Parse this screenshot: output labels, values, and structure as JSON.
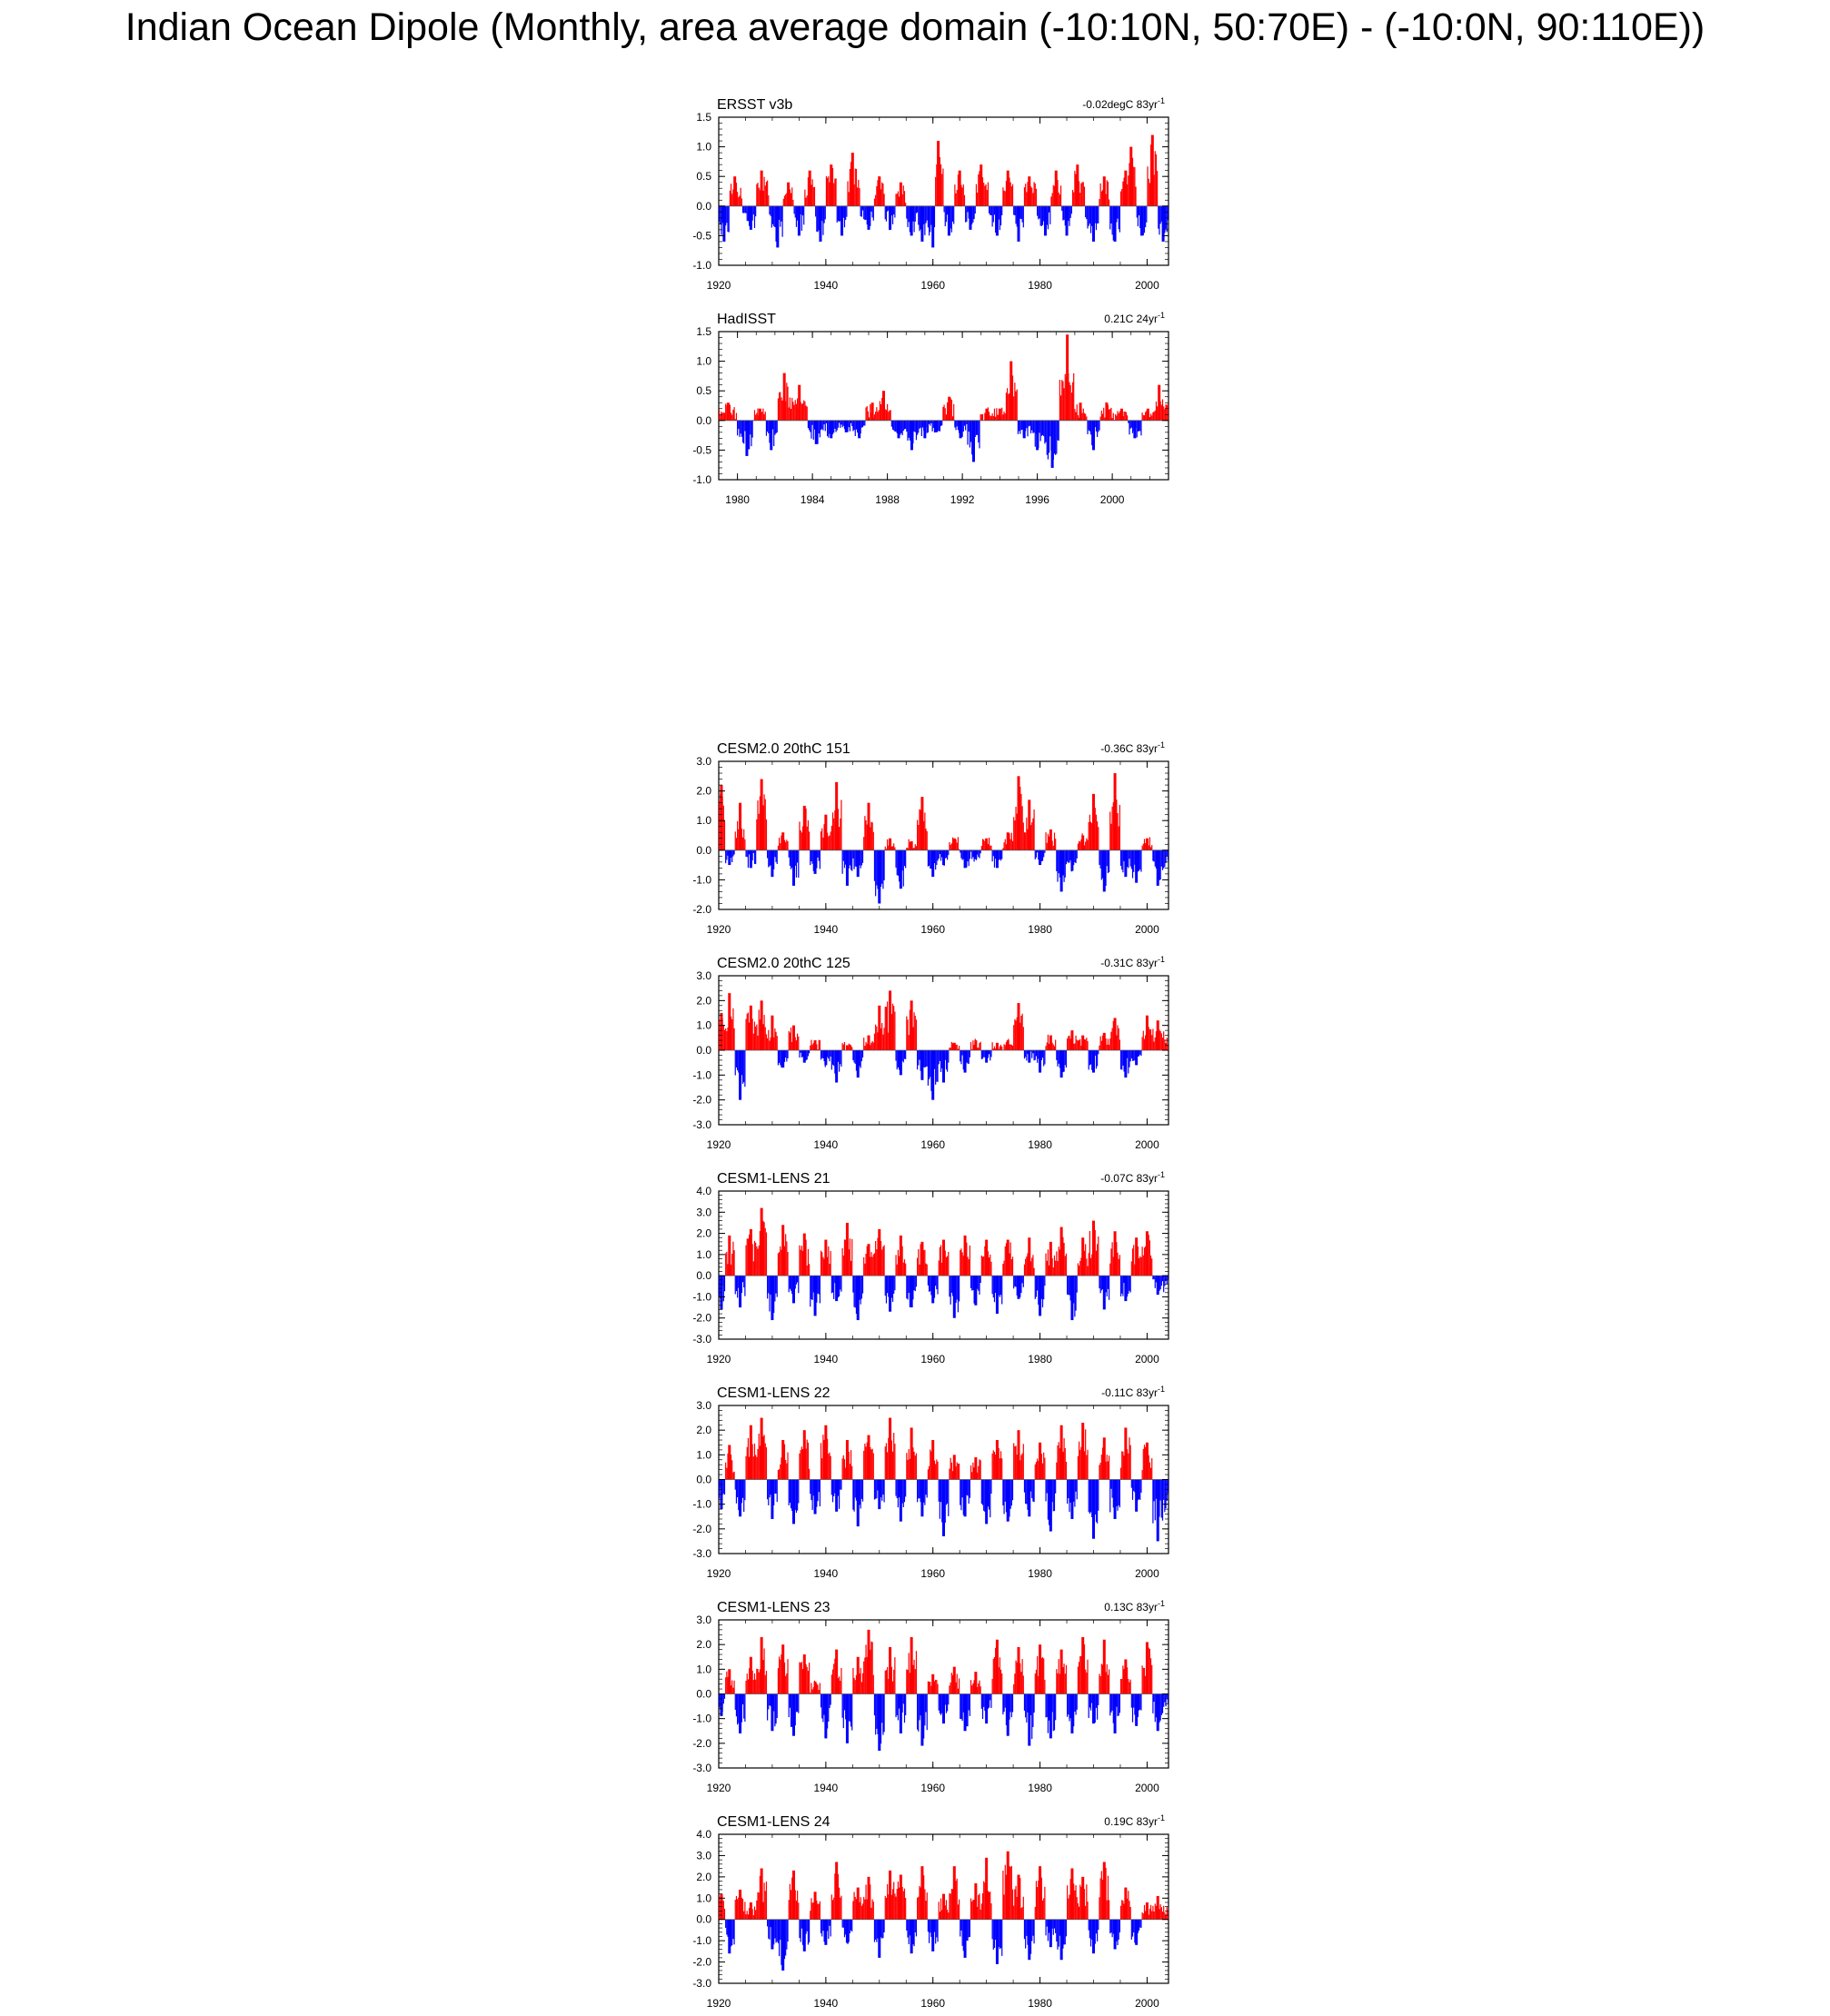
{
  "title": "Indian Ocean Dipole (Monthly, area average domain (-10:10N, 50:70E) - (-10:0N, 90:110E))",
  "colors": {
    "positive": "#ff0000",
    "negative": "#0000ff",
    "axis": "#000000"
  },
  "chart_data": [
    {
      "type": "bar",
      "name": "ERSST v3b",
      "title": "ERSST v3b",
      "trend": {
        "value": "-0.02degC",
        "per": "83yr",
        "exp": "-1"
      },
      "xlim": [
        1920,
        2004
      ],
      "ylim": [
        -1.0,
        1.5
      ],
      "xticks": [
        1920,
        1940,
        1960,
        1980,
        2000
      ],
      "yticks": [
        -1.0,
        -0.5,
        0.0,
        0.5,
        1.0,
        1.5
      ],
      "x": [
        1921,
        1923,
        1926,
        1928,
        1931,
        1933,
        1935,
        1937,
        1939,
        1941,
        1943,
        1945,
        1948,
        1950,
        1952,
        1954,
        1956,
        1958,
        1960,
        1961,
        1963,
        1965,
        1967,
        1969,
        1972,
        1974,
        1976,
        1978,
        1981,
        1983,
        1985,
        1987,
        1990,
        1992,
        1994,
        1996,
        1997,
        1999,
        2001,
        2003
      ],
      "values": [
        -0.6,
        0.5,
        -0.4,
        0.6,
        -0.7,
        0.4,
        -0.5,
        0.6,
        -0.6,
        0.7,
        -0.5,
        0.9,
        -0.4,
        0.5,
        -0.4,
        0.4,
        -0.5,
        -0.6,
        -0.7,
        1.1,
        -0.5,
        0.6,
        -0.4,
        0.7,
        -0.5,
        0.6,
        -0.6,
        0.5,
        -0.5,
        0.6,
        -0.5,
        0.7,
        -0.6,
        0.5,
        -0.6,
        0.6,
        1.0,
        -0.5,
        1.2,
        -0.6
      ]
    },
    {
      "type": "bar",
      "name": "HadISST",
      "title": "HadISST",
      "trend": {
        "value": "0.21C",
        "per": "24yr",
        "exp": "-1"
      },
      "xlim": [
        1979,
        2003
      ],
      "ylim": [
        -1.0,
        1.5
      ],
      "xticks": [
        1980,
        1984,
        1988,
        1992,
        1996,
        2000
      ],
      "yticks": [
        -1.0,
        -0.5,
        0.0,
        0.5,
        1.0,
        1.5
      ],
      "x": [
        1979.5,
        1980.5,
        1981.2,
        1981.8,
        1982.5,
        1983.3,
        1984.2,
        1985.0,
        1985.8,
        1986.5,
        1987.2,
        1987.8,
        1988.6,
        1989.3,
        1990.0,
        1990.6,
        1991.3,
        1991.9,
        1992.6,
        1993.3,
        1994.0,
        1994.6,
        1995.3,
        1996.0,
        1996.8,
        1997.6,
        1998.3,
        1999.0,
        1999.7,
        2000.5,
        2001.2,
        2001.9,
        2002.5
      ],
      "values": [
        0.3,
        -0.6,
        0.2,
        -0.5,
        0.8,
        0.6,
        -0.4,
        -0.3,
        -0.2,
        -0.3,
        0.3,
        0.5,
        -0.3,
        -0.5,
        -0.3,
        -0.2,
        0.4,
        -0.3,
        -0.7,
        0.2,
        0.2,
        1.0,
        -0.3,
        -0.5,
        -0.8,
        1.45,
        0.3,
        -0.5,
        0.3,
        0.2,
        -0.3,
        0.2,
        0.6
      ]
    },
    {
      "type": "bar",
      "name": "CESM2.0 20thC 151",
      "title": "CESM2.0 20thC 151",
      "trend": {
        "value": "-0.36C",
        "per": "83yr",
        "exp": "-1"
      },
      "xlim": [
        1920,
        2004
      ],
      "ylim": [
        -2.0,
        3.0
      ],
      "xticks": [
        1920,
        1940,
        1960,
        1980,
        2000
      ],
      "yticks": [
        -2.0,
        -1.0,
        0.0,
        1.0,
        2.0,
        3.0
      ],
      "x": [
        1920.5,
        1922,
        1924,
        1926,
        1928,
        1930,
        1932,
        1934,
        1936,
        1938,
        1940,
        1942,
        1944,
        1946,
        1948,
        1950,
        1952,
        1954,
        1956,
        1958,
        1960,
        1962,
        1964,
        1966,
        1968,
        1970,
        1972,
        1974,
        1976,
        1978,
        1980,
        1982,
        1984,
        1986,
        1988,
        1990,
        1992,
        1994,
        1996,
        1998,
        2000,
        2002
      ],
      "values": [
        2.2,
        -0.5,
        1.6,
        -0.6,
        2.4,
        -0.9,
        0.6,
        -1.2,
        1.5,
        -0.8,
        1.2,
        2.3,
        -1.2,
        -0.9,
        1.6,
        -1.8,
        0.4,
        -1.3,
        0.3,
        1.8,
        -0.9,
        -0.5,
        0.4,
        -0.6,
        -0.3,
        0.4,
        -0.6,
        0.6,
        2.5,
        1.7,
        -0.5,
        0.7,
        -1.4,
        -0.7,
        0.5,
        1.9,
        -1.4,
        2.6,
        -0.9,
        -1.1,
        0.4,
        -1.2
      ]
    },
    {
      "type": "bar",
      "name": "CESM2.0 20thC 125",
      "title": "CESM2.0 20thC 125",
      "trend": {
        "value": "-0.31C",
        "per": "83yr",
        "exp": "-1"
      },
      "xlim": [
        1920,
        2004
      ],
      "ylim": [
        -3.0,
        3.0
      ],
      "xticks": [
        1920,
        1940,
        1960,
        1980,
        2000
      ],
      "yticks": [
        -3.0,
        -2.0,
        -1.0,
        0.0,
        1.0,
        2.0,
        3.0
      ],
      "x": [
        1920.5,
        1922,
        1924,
        1926,
        1928,
        1930,
        1932,
        1934,
        1936,
        1938,
        1940,
        1942,
        1944,
        1946,
        1948,
        1950,
        1952,
        1954,
        1956,
        1958,
        1960,
        1962,
        1964,
        1966,
        1968,
        1970,
        1972,
        1974,
        1976,
        1978,
        1980,
        1982,
        1984,
        1986,
        1988,
        1990,
        1992,
        1994,
        1996,
        1998,
        2000,
        2002
      ],
      "values": [
        1.5,
        2.3,
        -2.0,
        1.8,
        2.0,
        1.4,
        -0.7,
        1.0,
        -0.5,
        0.4,
        -0.6,
        -1.3,
        0.2,
        -1.1,
        0.6,
        1.8,
        2.4,
        -1.0,
        2.0,
        -1.2,
        -2.0,
        -1.3,
        0.3,
        -0.9,
        0.4,
        -0.5,
        0.3,
        0.4,
        1.9,
        -0.5,
        -0.9,
        0.6,
        -1.1,
        0.8,
        0.6,
        -0.9,
        0.7,
        1.3,
        -1.1,
        -0.6,
        1.4,
        1.2
      ]
    },
    {
      "type": "bar",
      "name": "CESM1-LENS 21",
      "title": "CESM1-LENS 21",
      "trend": {
        "value": "-0.07C",
        "per": "83yr",
        "exp": "-1"
      },
      "xlim": [
        1920,
        2004
      ],
      "ylim": [
        -3.0,
        4.0
      ],
      "xticks": [
        1920,
        1940,
        1960,
        1980,
        2000
      ],
      "yticks": [
        -3.0,
        -2.0,
        -1.0,
        0.0,
        1.0,
        2.0,
        3.0,
        4.0
      ],
      "x": [
        1920.5,
        1922,
        1924,
        1926,
        1928,
        1930,
        1932,
        1934,
        1936,
        1938,
        1940,
        1942,
        1944,
        1946,
        1948,
        1950,
        1952,
        1954,
        1956,
        1958,
        1960,
        1962,
        1964,
        1966,
        1968,
        1970,
        1972,
        1974,
        1976,
        1978,
        1980,
        1982,
        1984,
        1986,
        1988,
        1990,
        1992,
        1994,
        1996,
        1998,
        2000,
        2002
      ],
      "values": [
        -1.6,
        1.9,
        -1.5,
        2.2,
        3.2,
        -2.1,
        2.4,
        -1.3,
        2.0,
        -1.9,
        1.7,
        -1.2,
        2.5,
        -2.1,
        1.5,
        2.2,
        -1.7,
        1.9,
        -1.5,
        1.6,
        -1.3,
        1.7,
        -2.0,
        1.9,
        -1.4,
        1.7,
        -1.8,
        1.7,
        -1.1,
        1.8,
        -1.9,
        1.6,
        2.3,
        -2.1,
        1.8,
        2.6,
        -1.6,
        2.1,
        -1.2,
        1.8,
        2.1,
        -0.9
      ]
    },
    {
      "type": "bar",
      "name": "CESM1-LENS 22",
      "title": "CESM1-LENS 22",
      "trend": {
        "value": "-0.11C",
        "per": "83yr",
        "exp": "-1"
      },
      "xlim": [
        1920,
        2004
      ],
      "ylim": [
        -3.0,
        3.0
      ],
      "xticks": [
        1920,
        1940,
        1960,
        1980,
        2000
      ],
      "yticks": [
        -3.0,
        -2.0,
        -1.0,
        0.0,
        1.0,
        2.0,
        3.0
      ],
      "x": [
        1920.5,
        1922,
        1924,
        1926,
        1928,
        1930,
        1932,
        1934,
        1936,
        1938,
        1940,
        1942,
        1944,
        1946,
        1948,
        1950,
        1952,
        1954,
        1956,
        1958,
        1960,
        1962,
        1964,
        1966,
        1968,
        1970,
        1972,
        1974,
        1976,
        1978,
        1980,
        1982,
        1984,
        1986,
        1988,
        1990,
        1992,
        1994,
        1996,
        1998,
        2000,
        2002
      ],
      "values": [
        -1.2,
        1.4,
        -1.5,
        2.2,
        2.5,
        -1.6,
        1.6,
        -1.8,
        2.0,
        -1.4,
        2.2,
        -1.3,
        1.6,
        -1.9,
        1.8,
        -1.2,
        2.5,
        -1.7,
        2.1,
        -1.5,
        1.6,
        -2.3,
        1.0,
        -1.5,
        0.9,
        -1.8,
        1.6,
        -1.7,
        2.0,
        -1.5,
        1.5,
        -2.1,
        2.2,
        -1.6,
        2.3,
        -2.4,
        1.7,
        -1.6,
        2.1,
        -1.3,
        1.5,
        -2.5
      ]
    },
    {
      "type": "bar",
      "name": "CESM1-LENS 23",
      "title": "CESM1-LENS 23",
      "trend": {
        "value": "0.13C",
        "per": "83yr",
        "exp": "-1"
      },
      "xlim": [
        1920,
        2004
      ],
      "ylim": [
        -3.0,
        3.0
      ],
      "xticks": [
        1920,
        1940,
        1960,
        1980,
        2000
      ],
      "yticks": [
        -3.0,
        -2.0,
        -1.0,
        0.0,
        1.0,
        2.0,
        3.0
      ],
      "x": [
        1920.5,
        1922,
        1924,
        1926,
        1928,
        1930,
        1932,
        1934,
        1936,
        1938,
        1940,
        1942,
        1944,
        1946,
        1948,
        1950,
        1952,
        1954,
        1956,
        1958,
        1960,
        1962,
        1964,
        1966,
        1968,
        1970,
        1972,
        1974,
        1976,
        1978,
        1980,
        1982,
        1984,
        1986,
        1988,
        1990,
        1992,
        1994,
        1996,
        1998,
        2000,
        2002
      ],
      "values": [
        -0.9,
        1.0,
        -1.6,
        1.5,
        2.3,
        -1.5,
        2.0,
        -1.7,
        1.6,
        0.5,
        -1.8,
        1.8,
        -2.0,
        1.5,
        2.6,
        -2.3,
        1.9,
        -1.6,
        2.3,
        -2.1,
        0.8,
        -1.2,
        1.1,
        -1.5,
        0.9,
        -1.2,
        2.2,
        -1.7,
        1.9,
        -2.1,
        2.0,
        -1.8,
        1.8,
        -1.6,
        2.3,
        -1.2,
        2.2,
        -1.6,
        1.4,
        -1.3,
        2.1,
        -1.5
      ]
    },
    {
      "type": "bar",
      "name": "CESM1-LENS 24",
      "title": "CESM1-LENS 24",
      "trend": {
        "value": "0.19C",
        "per": "83yr",
        "exp": "-1"
      },
      "xlim": [
        1920,
        2004
      ],
      "ylim": [
        -3.0,
        4.0
      ],
      "xticks": [
        1920,
        1940,
        1960,
        1980,
        2000
      ],
      "yticks": [
        -3.0,
        -2.0,
        -1.0,
        0.0,
        1.0,
        2.0,
        3.0,
        4.0
      ],
      "x": [
        1920.5,
        1922,
        1924,
        1926,
        1928,
        1930,
        1932,
        1934,
        1936,
        1938,
        1940,
        1942,
        1944,
        1946,
        1948,
        1950,
        1952,
        1954,
        1956,
        1958,
        1960,
        1962,
        1964,
        1966,
        1968,
        1970,
        1972,
        1974,
        1976,
        1978,
        1980,
        1982,
        1984,
        1986,
        1988,
        1990,
        1992,
        1994,
        1996,
        1998,
        2000,
        2002
      ],
      "values": [
        1.2,
        -1.6,
        1.4,
        0.8,
        2.4,
        -1.4,
        -2.4,
        2.3,
        -1.5,
        1.3,
        -1.2,
        2.7,
        -1.1,
        1.5,
        2.0,
        -1.8,
        2.3,
        2.1,
        -1.6,
        2.5,
        -1.5,
        1.2,
        2.5,
        -1.8,
        1.7,
        2.9,
        -2.1,
        3.2,
        2.1,
        -1.9,
        2.5,
        -1.3,
        -1.9,
        2.4,
        2.0,
        -1.6,
        2.7,
        -1.4,
        1.5,
        -1.2,
        0.8,
        1.1
      ]
    }
  ]
}
